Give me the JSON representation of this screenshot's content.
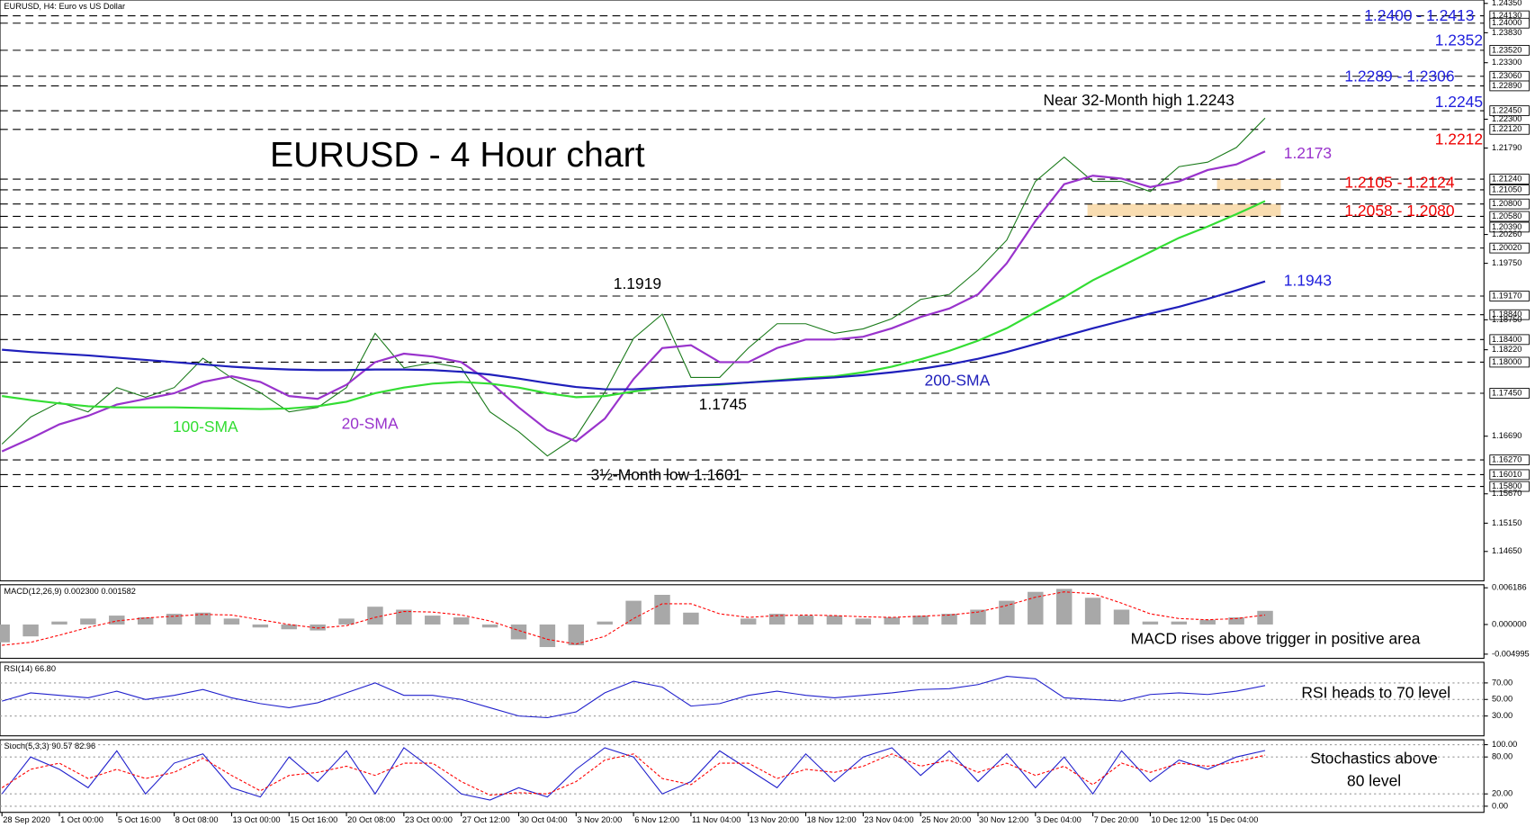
{
  "chart_data": [
    {
      "type": "line",
      "title": "EURUSD, H4:  Euro vs US Dollar",
      "heading": "EURUSD - 4 Hour chart",
      "categories": [
        "28 Sep 2020",
        null,
        "1 Oct 00:00",
        null,
        "5 Oct 16:00",
        null,
        "8 Oct 08:00",
        null,
        "13 Oct 00:00",
        null,
        "15 Oct 16:00",
        null,
        "20 Oct 08:00",
        null,
        "23 Oct 00:00",
        null,
        "27 Oct 12:00",
        null,
        "30 Oct 04:00",
        null,
        "3 Nov 20:00",
        null,
        "6 Nov 12:00",
        null,
        "11 Nov 04:00",
        null,
        "13 Nov 20:00",
        null,
        "18 Nov 12:00",
        null,
        "23 Nov 04:00",
        null,
        "25 Nov 20:00",
        null,
        "30 Nov 12:00",
        null,
        "3 Dec 04:00",
        null,
        "7 Dec 20:00",
        null,
        "10 Dec 12:00",
        null,
        "15 Dec 04:00",
        null,
        null
      ],
      "series": [
        {
          "color": "#1a7a1a",
          "values": [
            1.1655,
            1.1703,
            1.1729,
            1.1712,
            1.1755,
            1.1738,
            1.1755,
            1.1807,
            1.1772,
            1.1746,
            1.1712,
            1.172,
            1.1755,
            1.1851,
            1.179,
            1.1799,
            1.179,
            1.1712,
            1.1677,
            1.1634,
            1.1668,
            1.1747,
            1.1842,
            1.1885,
            1.1773,
            1.1773,
            1.1825,
            1.1868,
            1.1868,
            1.1851,
            1.1859,
            1.1877,
            1.1911,
            1.192,
            1.1963,
            1.2016,
            1.212,
            1.2163,
            1.212,
            1.212,
            1.2102,
            1.2146,
            1.2154,
            1.218,
            1.2232
          ]
        },
        {
          "name": "20-SMA",
          "color": "#9933cc",
          "values": [
            1.1642,
            1.1665,
            1.169,
            1.1705,
            1.1725,
            1.1735,
            1.1745,
            1.1765,
            1.1775,
            1.1765,
            1.174,
            1.1735,
            1.176,
            1.18,
            1.1815,
            1.181,
            1.18,
            1.1765,
            1.172,
            1.168,
            1.166,
            1.17,
            1.177,
            1.1825,
            1.183,
            1.18,
            1.18,
            1.1825,
            1.184,
            1.184,
            1.1845,
            1.186,
            1.188,
            1.1895,
            1.192,
            1.1975,
            1.205,
            1.2115,
            1.213,
            1.2125,
            1.211,
            1.212,
            1.214,
            1.215,
            1.2173
          ]
        },
        {
          "name": "100-SMA",
          "color": "#33dd33",
          "values": [
            1.174,
            1.1733,
            1.1727,
            1.1722,
            1.172,
            1.172,
            1.172,
            1.1719,
            1.1718,
            1.1717,
            1.1718,
            1.1722,
            1.173,
            1.1745,
            1.1755,
            1.1762,
            1.1765,
            1.1762,
            1.1755,
            1.1745,
            1.1738,
            1.174,
            1.1748,
            1.1755,
            1.1758,
            1.176,
            1.1764,
            1.1768,
            1.1772,
            1.1775,
            1.1782,
            1.1792,
            1.1805,
            1.182,
            1.1838,
            1.186,
            1.1888,
            1.1915,
            1.1945,
            1.197,
            1.1995,
            1.202,
            1.204,
            1.2062,
            1.2085
          ]
        },
        {
          "name": "200-SMA",
          "color": "#1f1fbb",
          "values": [
            1.1822,
            1.1818,
            1.1815,
            1.1812,
            1.1808,
            1.1804,
            1.18,
            1.1796,
            1.1792,
            1.1789,
            1.1787,
            1.1786,
            1.1786,
            1.1787,
            1.1787,
            1.1786,
            1.1783,
            1.1778,
            1.1771,
            1.1763,
            1.1756,
            1.1752,
            1.1752,
            1.1755,
            1.1758,
            1.1761,
            1.1764,
            1.1767,
            1.177,
            1.1773,
            1.1777,
            1.1782,
            1.1788,
            1.1796,
            1.1806,
            1.1818,
            1.1832,
            1.1846,
            1.186,
            1.1873,
            1.1886,
            1.1898,
            1.1912,
            1.1927,
            1.1943
          ]
        }
      ],
      "ylim": [
        1.1413,
        1.2441
      ],
      "yticks": [
        {
          "value": 1.2435,
          "label": "1.24350"
        },
        {
          "value": 1.2383,
          "label": "1.23830"
        },
        {
          "value": 1.233,
          "label": "1.23300"
        },
        {
          "value": 1.223,
          "label": "1.22300"
        },
        {
          "value": 1.2179,
          "label": "1.21790"
        },
        {
          "value": 1.2026,
          "label": "1.20260"
        },
        {
          "value": 1.1975,
          "label": "1.19750"
        },
        {
          "value": 1.1875,
          "label": "1.18750"
        },
        {
          "value": 1.1822,
          "label": "1.18220"
        },
        {
          "value": 1.1669,
          "label": "1.16690"
        },
        {
          "value": 1.1567,
          "label": "1.15670"
        },
        {
          "value": 1.1515,
          "label": "1.15150"
        },
        {
          "value": 1.1465,
          "label": "1.14650"
        }
      ],
      "levels": [
        {
          "value": 1.2413,
          "label": "1.24130"
        },
        {
          "value": 1.24,
          "label": "1.24000"
        },
        {
          "value": 1.2352,
          "label": "1.23520"
        },
        {
          "value": 1.2306,
          "label": "1.23060"
        },
        {
          "value": 1.2289,
          "label": "1.22890"
        },
        {
          "value": 1.2245,
          "label": "1.22450"
        },
        {
          "value": 1.2212,
          "label": "1.22120"
        },
        {
          "value": 1.2124,
          "label": "1.21240"
        },
        {
          "value": 1.2105,
          "label": "1.21050"
        },
        {
          "value": 1.208,
          "label": "1.20800"
        },
        {
          "value": 1.2058,
          "label": "1.20580"
        },
        {
          "value": 1.2039,
          "label": "1.20390"
        },
        {
          "value": 1.2002,
          "label": "1.20020"
        },
        {
          "value": 1.1917,
          "label": "1.19170"
        },
        {
          "value": 1.1884,
          "label": "1.18840"
        },
        {
          "value": 1.184,
          "label": "1.18400"
        },
        {
          "value": 1.18,
          "label": "1.18000"
        },
        {
          "value": 1.1745,
          "label": "1.17450"
        },
        {
          "value": 1.1627,
          "label": "1.16270"
        },
        {
          "value": 1.1601,
          "label": "1.16010"
        },
        {
          "value": 1.158,
          "label": "1.15800"
        }
      ],
      "annotations": [
        {
          "text": "Near 32-Month high 1.2243",
          "color": "#000000"
        },
        {
          "text": "1.1919",
          "color": "#000000"
        },
        {
          "text": "1.1745",
          "color": "#000000"
        },
        {
          "text": "3½-Month low 1.1601",
          "color": "#000000"
        },
        {
          "text": "100-SMA",
          "color": "#33dd33"
        },
        {
          "text": "20-SMA",
          "color": "#9933cc"
        },
        {
          "text": "200-SMA",
          "color": "#1f1fbb"
        },
        {
          "text": "1.2400 - 1.2413",
          "color": "#1f1fdd"
        },
        {
          "text": "1.2352",
          "color": "#1f1fdd"
        },
        {
          "text": "1.2289 - 1.2306",
          "color": "#1f1fdd"
        },
        {
          "text": "1.2245",
          "color": "#1f1fdd"
        },
        {
          "text": "1.2212",
          "color": "#ee0000"
        },
        {
          "text": "1.2173",
          "color": "#9933cc"
        },
        {
          "text": "1.2105 - 1.2124",
          "color": "#ee0000"
        },
        {
          "text": "1.2058 - 1.2080",
          "color": "#ee0000"
        },
        {
          "text": "1.1943",
          "color": "#1f1fdd"
        }
      ]
    },
    {
      "type": "bar",
      "title": "MACD(12,26,9) 0.002300 0.001582",
      "annotation": "MACD rises above trigger in positive area",
      "series": [
        {
          "color": "#a8a8a8",
          "values": [
            -0.003,
            -0.002,
            0.0005,
            0.001,
            0.0015,
            0.0012,
            0.0018,
            0.002,
            0.001,
            -0.0005,
            -0.0008,
            -0.001,
            0.001,
            0.003,
            0.0025,
            0.0015,
            0.0012,
            -0.0005,
            -0.0025,
            -0.0038,
            -0.0035,
            0.0005,
            0.004,
            0.005,
            0.002,
            0,
            0.001,
            0.0018,
            0.0015,
            0.0015,
            0.001,
            0.0012,
            0.0015,
            0.0018,
            0.0025,
            0.004,
            0.0055,
            0.006,
            0.0045,
            0.0025,
            0.0005,
            0.0005,
            0.0008,
            0.0012,
            0.0023
          ]
        },
        {
          "color": "#ff0000",
          "values": [
            -0.0035,
            -0.003,
            -0.0018,
            -0.0005,
            0.0006,
            0.0011,
            0.0014,
            0.0017,
            0.0016,
            0.0008,
            0,
            -0.0006,
            -0.0002,
            0.0012,
            0.0022,
            0.0021,
            0.0016,
            0.0006,
            -0.001,
            -0.0025,
            -0.0033,
            -0.002,
            0.001,
            0.0035,
            0.0035,
            0.0018,
            0.0012,
            0.0015,
            0.0016,
            0.0015,
            0.0013,
            0.0012,
            0.0014,
            0.0016,
            0.0021,
            0.0032,
            0.0046,
            0.0055,
            0.0052,
            0.0036,
            0.0018,
            0.001,
            0.0008,
            0.001,
            0.0016
          ]
        }
      ],
      "ylim": [
        -0.0057,
        0.0067
      ],
      "yticks": [
        0.006186,
        {
          "value": 0,
          "label": "0.000000"
        },
        -0.004995
      ]
    },
    {
      "type": "line",
      "title": "RSI(14) 66.80",
      "annotation": "RSI heads to 70 level",
      "series": [
        {
          "color": "#2020cc",
          "values": [
            48,
            58,
            55,
            52,
            60,
            50,
            55,
            62,
            52,
            45,
            40,
            46,
            58,
            70,
            55,
            55,
            50,
            40,
            30,
            28,
            35,
            58,
            72,
            65,
            42,
            45,
            55,
            60,
            55,
            52,
            55,
            58,
            62,
            63,
            68,
            78,
            75,
            52,
            50,
            48,
            56,
            58,
            56,
            60,
            66.8
          ]
        }
      ],
      "ylim": [
        6,
        95
      ],
      "yticks": [
        {
          "value": 70,
          "label": "70.00"
        },
        {
          "value": 50,
          "label": "50.00"
        },
        {
          "value": 30,
          "label": "30.00"
        }
      ]
    },
    {
      "type": "line",
      "title": "Stoch(5,3,3) 90.57 82.96",
      "annotation": [
        "Stochastics above",
        "80 level"
      ],
      "series": [
        {
          "color": "#2020cc",
          "values": [
            20,
            80,
            60,
            30,
            90,
            20,
            70,
            85,
            30,
            15,
            80,
            40,
            90,
            20,
            95,
            60,
            20,
            10,
            30,
            15,
            60,
            95,
            80,
            20,
            40,
            90,
            60,
            30,
            85,
            40,
            80,
            95,
            50,
            90,
            40,
            85,
            30,
            80,
            20,
            90,
            40,
            75,
            60,
            80,
            90.57
          ]
        },
        {
          "color": "#ff0000",
          "values": [
            30,
            60,
            70,
            45,
            60,
            45,
            55,
            78,
            50,
            25,
            50,
            55,
            65,
            50,
            70,
            70,
            40,
            18,
            22,
            20,
            40,
            75,
            85,
            45,
            35,
            70,
            70,
            45,
            60,
            55,
            65,
            85,
            65,
            75,
            55,
            70,
            50,
            65,
            35,
            70,
            55,
            70,
            65,
            72,
            82.96
          ]
        }
      ],
      "ylim": [
        -10,
        108
      ],
      "yticks": [
        {
          "value": 100,
          "label": "100.00"
        },
        {
          "value": 80,
          "label": "80.00"
        },
        {
          "value": 20,
          "label": "20.00"
        },
        {
          "value": 0,
          "label": "0.00"
        }
      ]
    }
  ]
}
